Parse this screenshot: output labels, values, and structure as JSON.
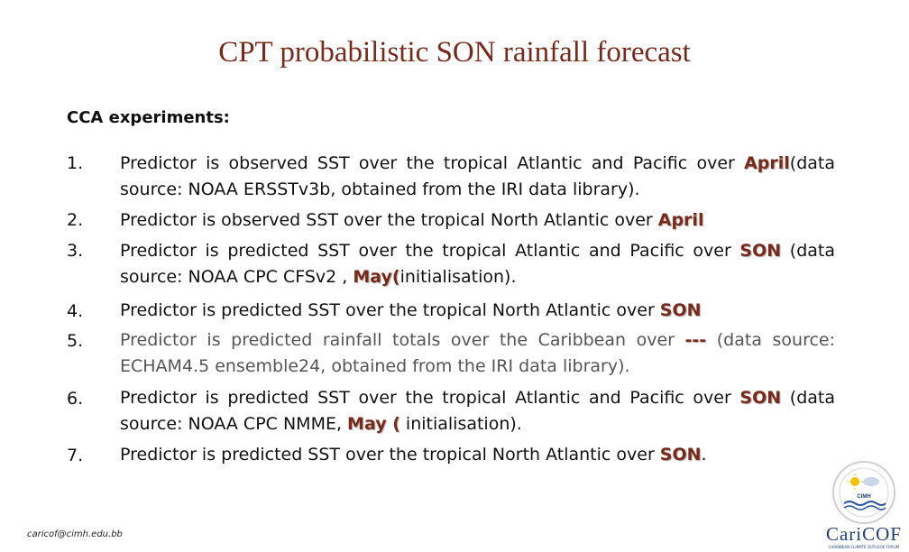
{
  "title": "CPT probabilistic SON rainfall forecast",
  "subtitle": "CCA experiments:",
  "items": [
    {
      "num": "1.",
      "pre": "Predictor is observed SST over the tropical Atlantic and Pacific over ",
      "hl1": "April",
      "post": "(data source: NOAA ERSSTv3b, obtained from the IRI data library)."
    },
    {
      "num": "2.",
      "pre": "Predictor is observed SST over the tropical North Atlantic over ",
      "hl1": "April"
    },
    {
      "num": "3.",
      "pre": "Predictor is predicted SST over the tropical Atlantic and Pacific over ",
      "hl1": "SON",
      "mid": " (data source: NOAA CPC CFSv2 , ",
      "hl2": "May(",
      "post": "initialisation)."
    },
    {
      "num": "4.",
      "pre": "Predictor is predicted SST over the tropical North Atlantic over ",
      "hl1": "SON"
    },
    {
      "num": "5.",
      "pre": "Predictor is predicted rainfall totals over the Caribbean over ",
      "hl1": "---",
      "post": " (data source: ECHAM4.5 ensemble24, obtained from the IRI data library)."
    },
    {
      "num": "6.",
      "pre": "Predictor is predicted SST over the tropical Atlantic and Pacific over ",
      "hl1": "SON",
      "mid": " (data source: NOAA CPC NMME, ",
      "hl2": "May (",
      "post": " initialisation)."
    },
    {
      "num": "7.",
      "pre": "Predictor is predicted SST over the tropical North Atlantic over ",
      "hl1": "SON",
      "post": "."
    }
  ],
  "footer": "caricof@cimh.edu.bb",
  "logo": {
    "circle_text": "CIMH",
    "name": "CariCOF",
    "tagline": "CARIBBEAN CLIMATE OUTLOOK FORUM"
  }
}
